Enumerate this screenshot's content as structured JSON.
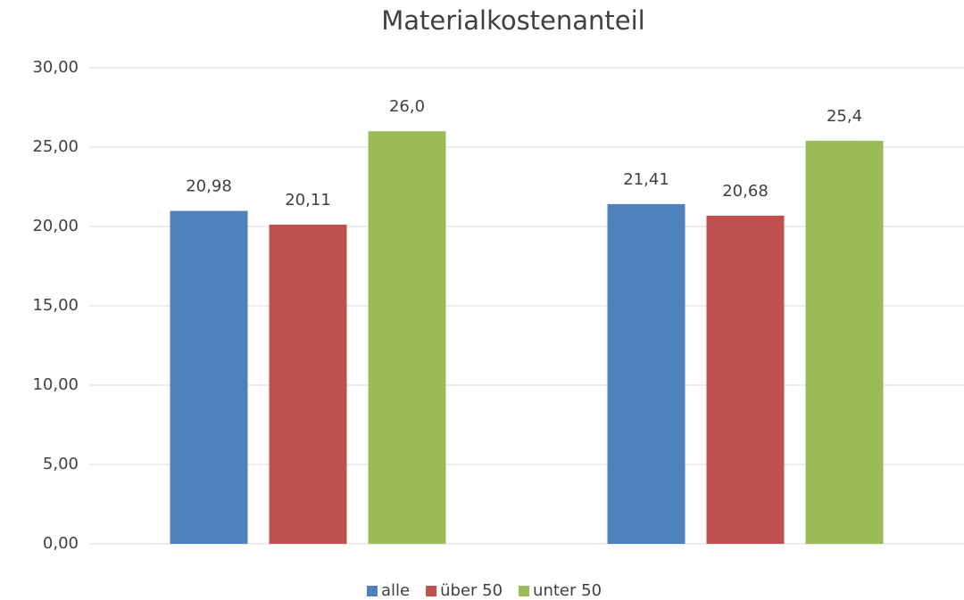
{
  "chart_data": {
    "type": "bar",
    "title": "Materialkostenanteil",
    "categories": [
      null,
      null
    ],
    "series": [
      {
        "name": "alle",
        "color": "#4f81bd",
        "values": [
          20.98,
          21.41
        ],
        "value_labels": [
          "20,98",
          "21,41"
        ]
      },
      {
        "name": "über 50",
        "color": "#c0504d",
        "values": [
          20.11,
          20.68
        ],
        "value_labels": [
          "20,11",
          "20,68"
        ]
      },
      {
        "name": "unter 50",
        "color": "#9bbb59",
        "values": [
          26.0,
          25.4
        ],
        "value_labels": [
          "26,0",
          "25,4"
        ]
      }
    ],
    "ylim": [
      0,
      30
    ],
    "yticks": [
      {
        "value": 0,
        "label": "0,00"
      },
      {
        "value": 5,
        "label": "5,00"
      },
      {
        "value": 10,
        "label": "10,00"
      },
      {
        "value": 15,
        "label": "15,00"
      },
      {
        "value": 20,
        "label": "20,00"
      },
      {
        "value": 25,
        "label": "25,00"
      },
      {
        "value": 30,
        "label": "30,00"
      }
    ],
    "grid": true,
    "legend": "bottom"
  }
}
